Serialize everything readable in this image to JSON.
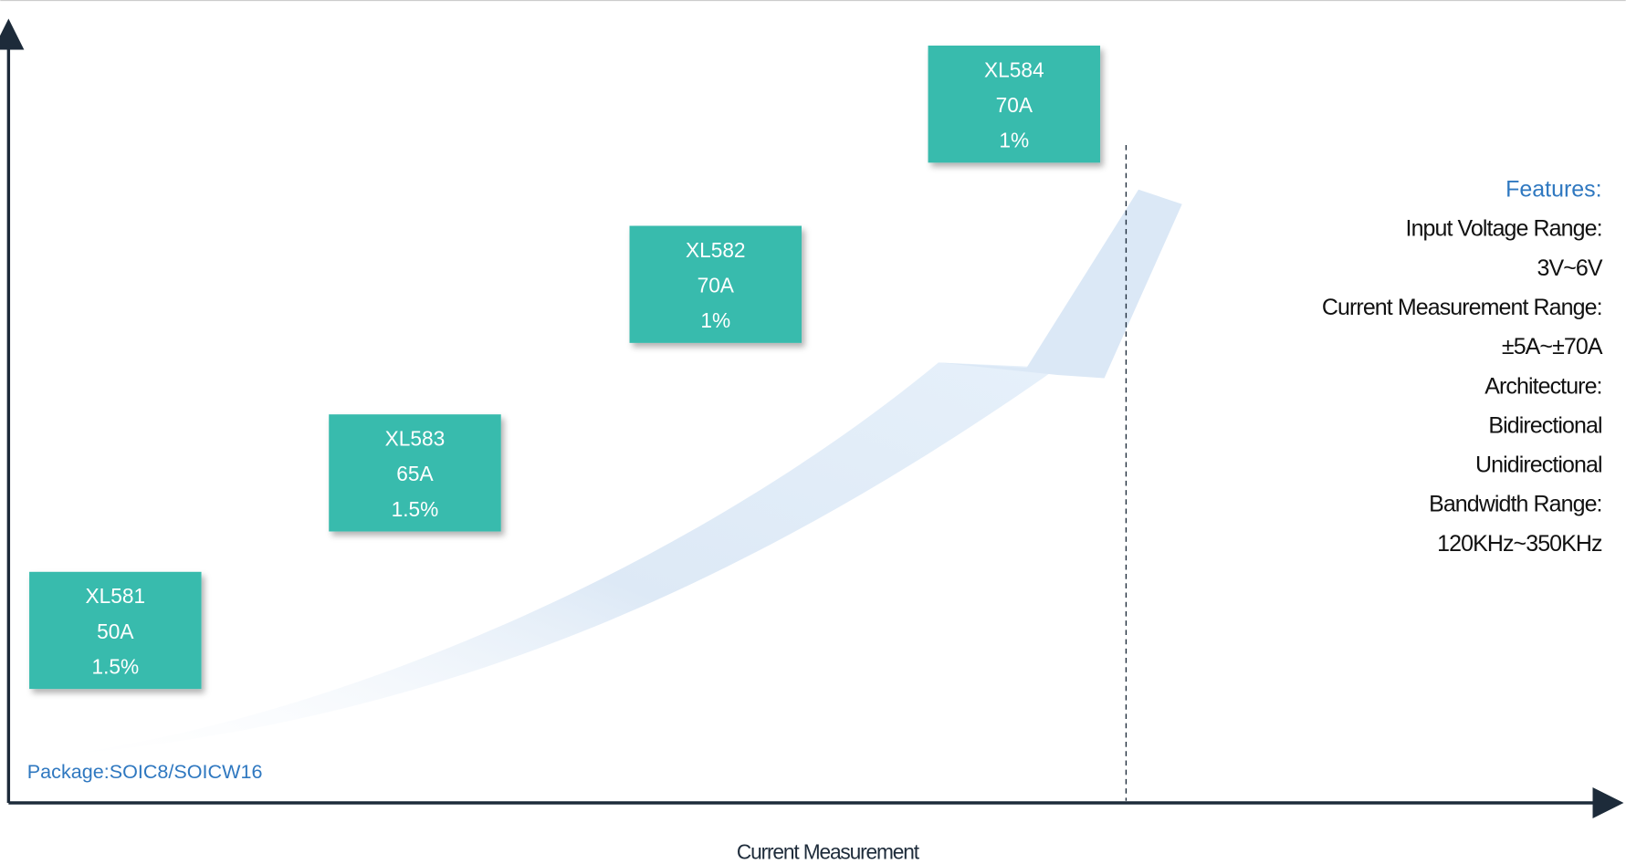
{
  "boxes": [
    {
      "lines": [
        "XL581",
        "50A",
        "1.5%"
      ]
    },
    {
      "lines": [
        "XL583",
        "65A",
        "1.5%"
      ]
    },
    {
      "lines": [
        "XL582",
        "70A",
        "1%"
      ]
    },
    {
      "lines": [
        "XL584",
        "70A",
        "1%"
      ]
    }
  ],
  "features": {
    "title": "Features:",
    "items": [
      "Input Voltage Range:",
      "3V~6V",
      "Current Measurement Range:",
      "±5A~±70A",
      "Architecture:",
      "Bidirectional",
      "Unidirectional",
      "Bandwidth Range:",
      "120KHz~350KHz"
    ]
  },
  "package": "Package:SOIC8/SOICW16",
  "x_axis_label": "Current Measurement"
}
